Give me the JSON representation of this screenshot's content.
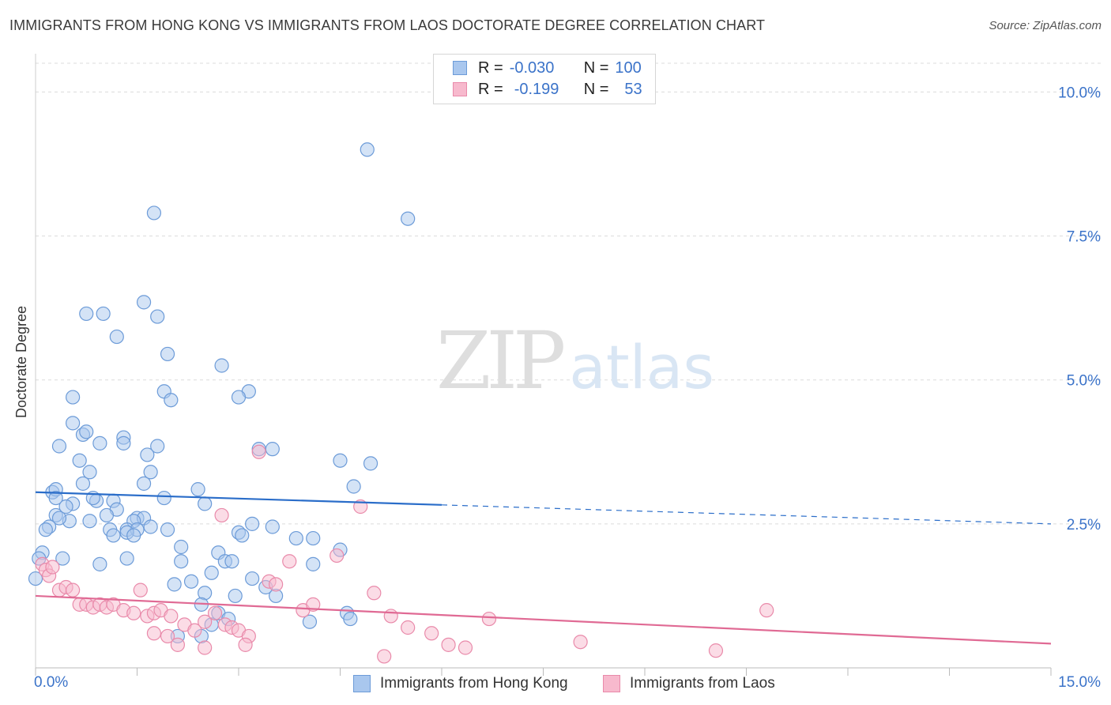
{
  "title": "IMMIGRANTS FROM HONG KONG VS IMMIGRANTS FROM LAOS DOCTORATE DEGREE CORRELATION CHART",
  "source": "Source: ZipAtlas.com",
  "watermark": {
    "zip": "ZIP",
    "atlas": "atlas"
  },
  "legend": {
    "rows": [
      {
        "r_label": "R =",
        "r_value": "-0.030",
        "n_label": "N =",
        "n_value": "100"
      },
      {
        "r_label": "R =",
        "r_value": "-0.199",
        "n_label": "N =",
        "n_value": "53"
      }
    ]
  },
  "colors": {
    "hk_fill": "#a9c7ee",
    "hk_stroke": "#6c9bd8",
    "hk_line": "#2a6dc9",
    "laos_fill": "#f7b9cd",
    "laos_stroke": "#e98aaa",
    "laos_line": "#e06a94",
    "tick_label": "#3b73c9",
    "grid": "#dcdcdc"
  },
  "chart_data": {
    "type": "scatter",
    "title": "IMMIGRANTS FROM HONG KONG VS IMMIGRANTS FROM LAOS DOCTORATE DEGREE CORRELATION CHART",
    "xlabel": "",
    "ylabel": "Doctorate Degree",
    "xlim": [
      0,
      15
    ],
    "ylim": [
      0,
      10.5
    ],
    "x_tick_labels": [
      {
        "value": 0,
        "label": "0.0%"
      },
      {
        "value": 15,
        "label": "15.0%"
      }
    ],
    "y_ticks": [
      {
        "value": 2.5,
        "label": "2.5%"
      },
      {
        "value": 5.0,
        "label": "5.0%"
      },
      {
        "value": 7.5,
        "label": "7.5%"
      },
      {
        "value": 10.0,
        "label": "10.0%"
      }
    ],
    "grid": true,
    "legend_position": "top-center",
    "series": [
      {
        "name": "Immigrants from Hong Kong",
        "r": -0.03,
        "n": 100,
        "trend": {
          "x0": 0,
          "y0": 3.05,
          "x_solid_end": 6,
          "x1": 15,
          "y1": 2.5
        },
        "points": [
          [
            4.9,
            9.0
          ],
          [
            1.75,
            7.9
          ],
          [
            5.5,
            7.8
          ],
          [
            1.6,
            6.35
          ],
          [
            0.75,
            6.15
          ],
          [
            1.0,
            6.15
          ],
          [
            1.8,
            6.1
          ],
          [
            1.2,
            5.75
          ],
          [
            1.95,
            5.45
          ],
          [
            2.75,
            5.25
          ],
          [
            0.55,
            4.7
          ],
          [
            1.9,
            4.8
          ],
          [
            2.0,
            4.65
          ],
          [
            3.15,
            4.8
          ],
          [
            3.0,
            4.7
          ],
          [
            0.55,
            4.25
          ],
          [
            0.7,
            4.05
          ],
          [
            0.75,
            4.1
          ],
          [
            1.3,
            4.0
          ],
          [
            1.3,
            3.9
          ],
          [
            0.35,
            3.85
          ],
          [
            0.95,
            3.9
          ],
          [
            1.8,
            3.85
          ],
          [
            1.65,
            3.7
          ],
          [
            3.3,
            3.8
          ],
          [
            3.5,
            3.8
          ],
          [
            0.65,
            3.6
          ],
          [
            4.5,
            3.6
          ],
          [
            4.95,
            3.55
          ],
          [
            0.8,
            3.4
          ],
          [
            1.7,
            3.4
          ],
          [
            1.6,
            3.2
          ],
          [
            0.7,
            3.2
          ],
          [
            4.7,
            3.15
          ],
          [
            0.25,
            3.05
          ],
          [
            0.3,
            3.1
          ],
          [
            2.4,
            3.1
          ],
          [
            0.3,
            2.95
          ],
          [
            1.9,
            2.95
          ],
          [
            0.9,
            2.9
          ],
          [
            0.85,
            2.95
          ],
          [
            1.15,
            2.9
          ],
          [
            0.55,
            2.85
          ],
          [
            0.45,
            2.8
          ],
          [
            2.5,
            2.85
          ],
          [
            1.2,
            2.75
          ],
          [
            0.3,
            2.65
          ],
          [
            1.05,
            2.65
          ],
          [
            0.8,
            2.55
          ],
          [
            1.5,
            2.6
          ],
          [
            1.6,
            2.6
          ],
          [
            1.45,
            2.55
          ],
          [
            0.5,
            2.55
          ],
          [
            0.35,
            2.6
          ],
          [
            0.2,
            2.45
          ],
          [
            0.15,
            2.4
          ],
          [
            1.1,
            2.4
          ],
          [
            1.35,
            2.4
          ],
          [
            1.5,
            2.4
          ],
          [
            1.7,
            2.45
          ],
          [
            1.95,
            2.4
          ],
          [
            1.35,
            2.35
          ],
          [
            1.15,
            2.3
          ],
          [
            1.45,
            2.3
          ],
          [
            3.0,
            2.35
          ],
          [
            3.05,
            2.3
          ],
          [
            3.2,
            2.5
          ],
          [
            3.5,
            2.45
          ],
          [
            3.85,
            2.25
          ],
          [
            4.1,
            2.25
          ],
          [
            2.15,
            2.1
          ],
          [
            4.5,
            2.05
          ],
          [
            0.1,
            2.0
          ],
          [
            0.05,
            1.9
          ],
          [
            0.4,
            1.9
          ],
          [
            2.7,
            2.0
          ],
          [
            1.35,
            1.9
          ],
          [
            2.15,
            1.85
          ],
          [
            2.8,
            1.85
          ],
          [
            2.9,
            1.85
          ],
          [
            0.95,
            1.8
          ],
          [
            4.1,
            1.8
          ],
          [
            2.6,
            1.65
          ],
          [
            0.0,
            1.55
          ],
          [
            3.2,
            1.55
          ],
          [
            2.3,
            1.5
          ],
          [
            2.05,
            1.45
          ],
          [
            3.4,
            1.4
          ],
          [
            3.55,
            1.25
          ],
          [
            2.5,
            1.3
          ],
          [
            2.95,
            1.25
          ],
          [
            2.45,
            1.1
          ],
          [
            4.6,
            0.95
          ],
          [
            4.65,
            0.85
          ],
          [
            2.7,
            0.95
          ],
          [
            2.85,
            0.85
          ],
          [
            4.05,
            0.8
          ],
          [
            2.6,
            0.75
          ],
          [
            2.1,
            0.55
          ],
          [
            2.45,
            0.55
          ]
        ]
      },
      {
        "name": "Immigrants from Laos",
        "r": -0.199,
        "n": 53,
        "trend": {
          "x0": 0,
          "y0": 1.25,
          "x_solid_end": 15,
          "x1": 15,
          "y1": 0.42
        },
        "points": [
          [
            0.1,
            1.8
          ],
          [
            0.15,
            1.7
          ],
          [
            0.2,
            1.6
          ],
          [
            0.25,
            1.75
          ],
          [
            0.35,
            1.35
          ],
          [
            0.45,
            1.4
          ],
          [
            0.55,
            1.35
          ],
          [
            0.65,
            1.1
          ],
          [
            0.75,
            1.1
          ],
          [
            0.85,
            1.05
          ],
          [
            0.95,
            1.1
          ],
          [
            1.05,
            1.05
          ],
          [
            1.15,
            1.1
          ],
          [
            1.3,
            1.0
          ],
          [
            1.45,
            0.95
          ],
          [
            1.55,
            1.35
          ],
          [
            1.65,
            0.9
          ],
          [
            1.75,
            0.95
          ],
          [
            1.85,
            1.0
          ],
          [
            2.0,
            0.9
          ],
          [
            2.2,
            0.75
          ],
          [
            2.35,
            0.65
          ],
          [
            2.5,
            0.8
          ],
          [
            2.65,
            0.95
          ],
          [
            2.75,
            2.65
          ],
          [
            2.8,
            0.75
          ],
          [
            2.9,
            0.7
          ],
          [
            3.0,
            0.65
          ],
          [
            3.15,
            0.55
          ],
          [
            3.3,
            3.75
          ],
          [
            3.45,
            1.5
          ],
          [
            3.55,
            1.45
          ],
          [
            3.75,
            1.85
          ],
          [
            3.95,
            1.0
          ],
          [
            4.1,
            1.1
          ],
          [
            4.45,
            1.95
          ],
          [
            4.8,
            2.8
          ],
          [
            5.0,
            1.3
          ],
          [
            5.25,
            0.9
          ],
          [
            5.5,
            0.7
          ],
          [
            5.85,
            0.6
          ],
          [
            6.1,
            0.4
          ],
          [
            6.35,
            0.35
          ],
          [
            6.7,
            0.85
          ],
          [
            8.05,
            0.45
          ],
          [
            10.05,
            0.3
          ],
          [
            10.8,
            1.0
          ],
          [
            1.95,
            0.55
          ],
          [
            2.1,
            0.4
          ],
          [
            2.5,
            0.35
          ],
          [
            3.1,
            0.4
          ],
          [
            1.75,
            0.6
          ],
          [
            5.15,
            0.2
          ]
        ]
      }
    ]
  }
}
